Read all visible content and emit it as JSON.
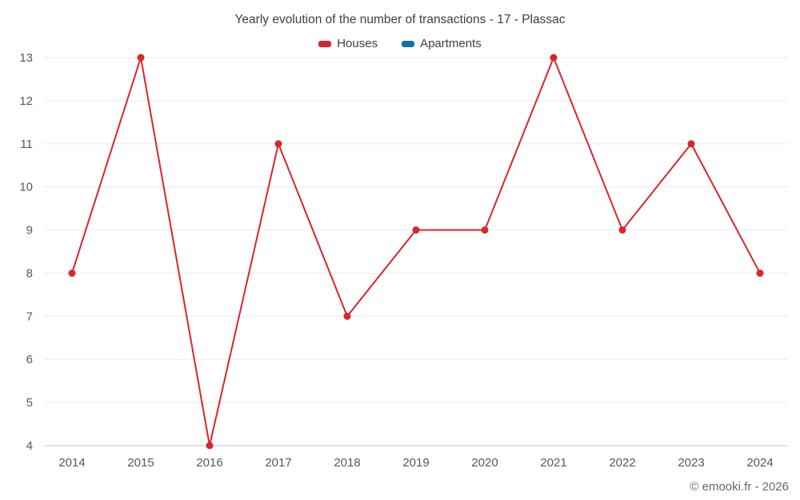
{
  "header": {
    "title": "Yearly evolution of the number of transactions - 17 - Plassac"
  },
  "legend": {
    "items": [
      {
        "label": "Houses",
        "color": "#d9252d"
      },
      {
        "label": "Apartments",
        "color": "#1470a0"
      }
    ]
  },
  "footer": {
    "credit": "© emooki.fr - 2026"
  },
  "chart_data": {
    "type": "line",
    "title": "Yearly evolution of the number of transactions - 17 - Plassac",
    "x": [
      2014,
      2015,
      2016,
      2017,
      2018,
      2019,
      2020,
      2021,
      2022,
      2023,
      2024
    ],
    "series": [
      {
        "name": "Houses",
        "color": "#d9252d",
        "values": [
          8,
          13,
          4,
          11,
          7,
          9,
          9,
          13,
          9,
          11,
          8
        ]
      },
      {
        "name": "Apartments",
        "color": "#1470a0",
        "values": []
      }
    ],
    "xlabel": "",
    "ylabel": "",
    "ylim": [
      4,
      13
    ],
    "yticks": [
      4,
      5,
      6,
      7,
      8,
      9,
      10,
      11,
      12,
      13
    ],
    "grid": "horizontal",
    "legend_position": "top"
  }
}
